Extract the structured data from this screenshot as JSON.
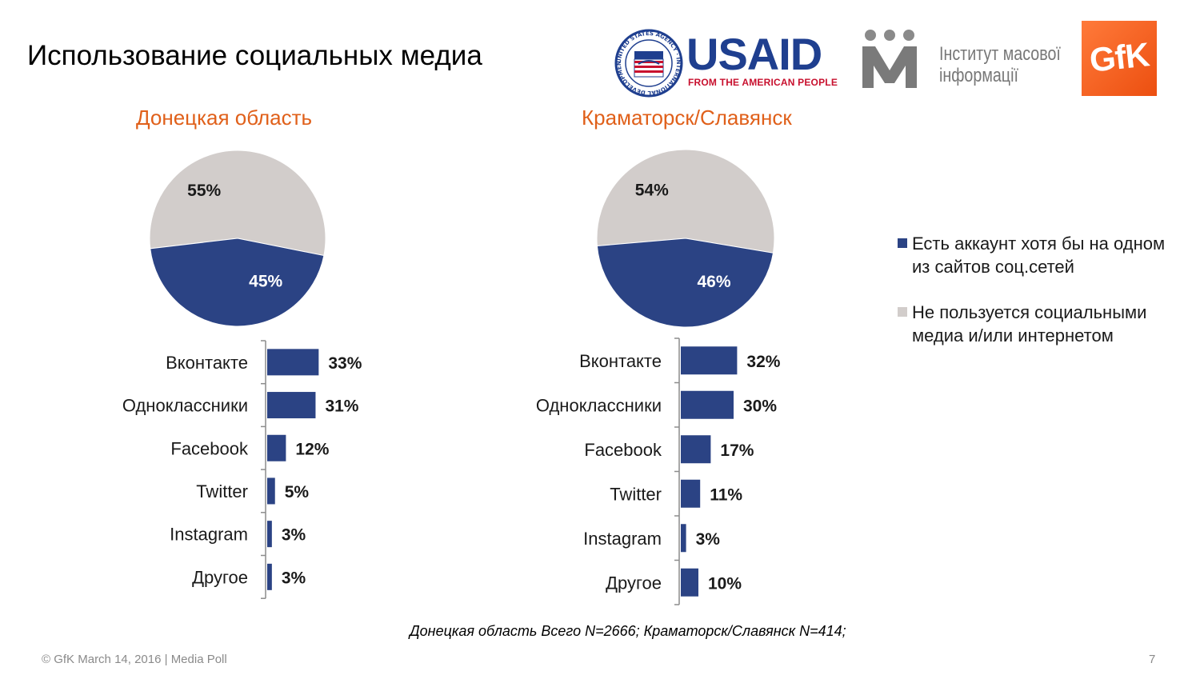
{
  "page": {
    "title": "Использование социальных медиа",
    "note": "Донецкая область Всего N=2666; Краматорск/Славянск N=414;",
    "footer": "© GfK March 14, 2016 | Media Poll",
    "page_number": "7"
  },
  "logos": {
    "usaid_word": "USAID",
    "usaid_tagline": "FROM THE AMERICAN PEOPLE",
    "usaid_seal_text": "UNITED STATES AGENCY · INTERNATIONAL DEVELOPMENT ·",
    "imi_line1": "Інститут масової",
    "imi_line2": "інформації",
    "gfk": "GfK"
  },
  "legend": [
    {
      "label": "Есть аккаунт хотя бы на одном из сайтов соц.сетей",
      "color": "#2b4384"
    },
    {
      "label": "Не пользуется социальными медиа и/или интернетом",
      "color": "#d2cdcb"
    }
  ],
  "colors": {
    "accent": "#e0601a",
    "bar": "#2b4384",
    "pie_dark": "#2b4384",
    "pie_light": "#d2cdcb",
    "axis": "#8c8c8c"
  },
  "chart_data": [
    {
      "type": "pie",
      "title": "Донецкая область",
      "slices": [
        {
          "label": "Есть аккаунт хотя бы на одном из сайтов соц.сетей",
          "value": 45,
          "display": "45%"
        },
        {
          "label": "Не пользуется социальными медиа и/или интернетом",
          "value": 55,
          "display": "55%"
        }
      ]
    },
    {
      "type": "bar",
      "orientation": "horizontal",
      "categories": [
        "Вконтакте",
        "Одноклассники",
        "Facebook",
        "Twitter",
        "Instagram",
        "Другое"
      ],
      "values": [
        33,
        31,
        12,
        5,
        3,
        3
      ],
      "value_labels": [
        "33%",
        "31%",
        "12%",
        "5%",
        "3%",
        "3%"
      ]
    },
    {
      "type": "pie",
      "title": "Краматорск/Славянск",
      "slices": [
        {
          "label": "Есть аккаунт хотя бы на одном из сайтов соц.сетей",
          "value": 46,
          "display": "46%"
        },
        {
          "label": "Не пользуется социальными медиа и/или интернетом",
          "value": 54,
          "display": "54%"
        }
      ]
    },
    {
      "type": "bar",
      "orientation": "horizontal",
      "categories": [
        "Вконтакте",
        "Одноклассники",
        "Facebook",
        "Twitter",
        "Instagram",
        "Другое"
      ],
      "values": [
        32,
        30,
        17,
        11,
        3,
        10
      ],
      "value_labels": [
        "32%",
        "30%",
        "17%",
        "11%",
        "3%",
        "10%"
      ]
    }
  ]
}
